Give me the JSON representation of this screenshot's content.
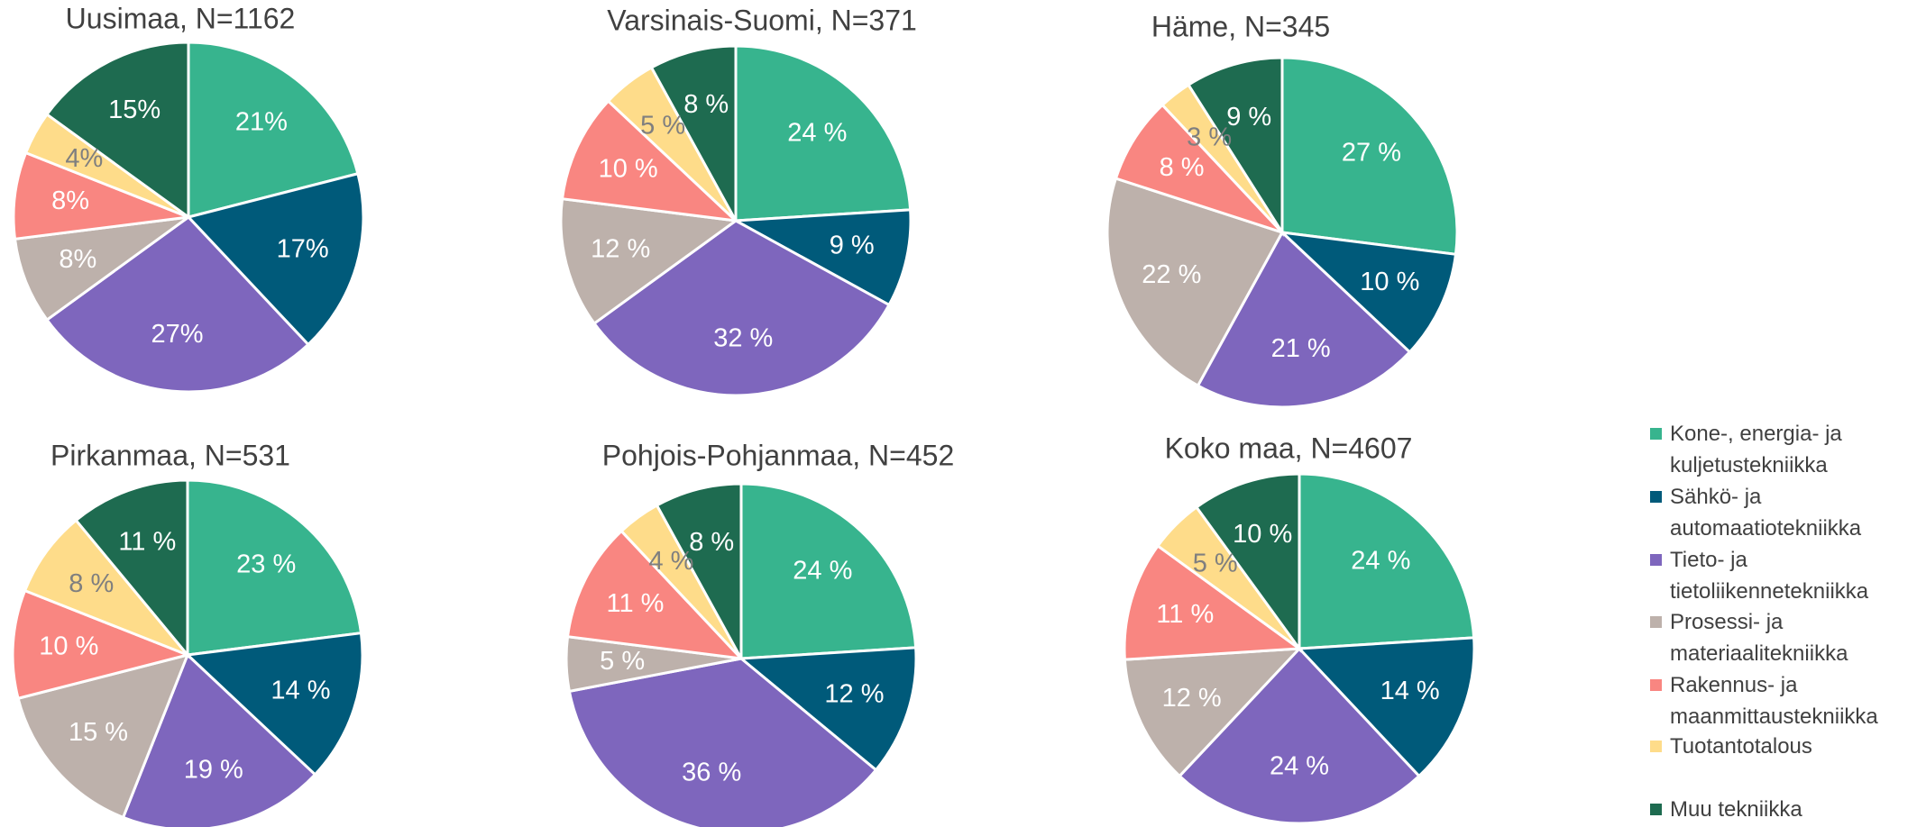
{
  "chart_data": [
    {
      "type": "pie",
      "title": "Uusimaa, N=1162",
      "categories": [
        "Kone-, energia- ja kuljetustekniikka",
        "Sähkö- ja automaatiotekniikka",
        "Tieto- ja tietoliikennetekniikka",
        "Prosessi- ja materiaalitekniikka",
        "Rakennus- ja maanmittaustekniikka",
        "Tuotantotalous",
        "Muu tekniikka"
      ],
      "values": [
        21,
        17,
        27,
        8,
        8,
        4,
        15
      ],
      "value_labels": [
        "21%",
        "17%",
        "27%",
        "8%",
        "8%",
        "4%",
        "15%"
      ],
      "colors": [
        "#37b48e",
        "#005a7a",
        "#7e66bd",
        "#bdb1ab",
        "#f98681",
        "#fedc8a",
        "#1e6b50"
      ]
    },
    {
      "type": "pie",
      "title": "Varsinais-Suomi, N=371",
      "categories": [
        "Kone-, energia- ja kuljetustekniikka",
        "Sähkö- ja automaatiotekniikka",
        "Tieto- ja tietoliikennetekniikka",
        "Prosessi- ja materiaalitekniikka",
        "Rakennus- ja maanmittaustekniikka",
        "Tuotantotalous",
        "Muu tekniikka"
      ],
      "values": [
        24,
        9,
        32,
        12,
        10,
        5,
        8
      ],
      "value_labels": [
        "24 %",
        "9 %",
        "32 %",
        "12 %",
        "10 %",
        "5 %",
        "8 %"
      ],
      "colors": [
        "#37b48e",
        "#005a7a",
        "#7e66bd",
        "#bdb1ab",
        "#f98681",
        "#fedc8a",
        "#1e6b50"
      ]
    },
    {
      "type": "pie",
      "title": "Häme, N=345",
      "categories": [
        "Kone-, energia- ja kuljetustekniikka",
        "Sähkö- ja automaatiotekniikka",
        "Tieto- ja tietoliikennetekniikka",
        "Prosessi- ja materiaalitekniikka",
        "Rakennus- ja maanmittaustekniikka",
        "Tuotantotalous",
        "Muu tekniikka"
      ],
      "values": [
        27,
        10,
        21,
        22,
        8,
        3,
        9
      ],
      "value_labels": [
        "27 %",
        "10 %",
        "21 %",
        "22 %",
        "8 %",
        "3 %",
        "9 %"
      ],
      "colors": [
        "#37b48e",
        "#005a7a",
        "#7e66bd",
        "#bdb1ab",
        "#f98681",
        "#fedc8a",
        "#1e6b50"
      ]
    },
    {
      "type": "pie",
      "title": "Pirkanmaa, N=531",
      "categories": [
        "Kone-, energia- ja kuljetustekniikka",
        "Sähkö- ja automaatiotekniikka",
        "Tieto- ja tietoliikennetekniikka",
        "Prosessi- ja materiaalitekniikka",
        "Rakennus- ja maanmittaustekniikka",
        "Tuotantotalous",
        "Muu tekniikka"
      ],
      "values": [
        23,
        14,
        19,
        15,
        10,
        8,
        11
      ],
      "value_labels": [
        "23 %",
        "14 %",
        "19 %",
        "15 %",
        "10 %",
        "8 %",
        "11 %"
      ],
      "colors": [
        "#37b48e",
        "#005a7a",
        "#7e66bd",
        "#bdb1ab",
        "#f98681",
        "#fedc8a",
        "#1e6b50"
      ]
    },
    {
      "type": "pie",
      "title": "Pohjois-Pohjanmaa, N=452",
      "categories": [
        "Kone-, energia- ja kuljetustekniikka",
        "Sähkö- ja automaatiotekniikka",
        "Tieto- ja tietoliikennetekniikka",
        "Prosessi- ja materiaalitekniikka",
        "Rakennus- ja maanmittaustekniikka",
        "Tuotantotalous",
        "Muu tekniikka"
      ],
      "values": [
        24,
        12,
        36,
        5,
        11,
        4,
        8
      ],
      "value_labels": [
        "24 %",
        "12 %",
        "36 %",
        "5 %",
        "11 %",
        "4 %",
        "8 %"
      ],
      "colors": [
        "#37b48e",
        "#005a7a",
        "#7e66bd",
        "#bdb1ab",
        "#f98681",
        "#fedc8a",
        "#1e6b50"
      ]
    },
    {
      "type": "pie",
      "title": "Koko maa, N=4607",
      "categories": [
        "Kone-, energia- ja kuljetustekniikka",
        "Sähkö- ja automaatiotekniikka",
        "Tieto- ja tietoliikennetekniikka",
        "Prosessi- ja materiaalitekniikka",
        "Rakennus- ja maanmittaustekniikka",
        "Tuotantotalous",
        "Muu tekniikka"
      ],
      "values": [
        24,
        14,
        24,
        12,
        11,
        5,
        10
      ],
      "value_labels": [
        "24 %",
        "14 %",
        "24 %",
        "12 %",
        "11 %",
        "5 %",
        "10 %"
      ],
      "colors": [
        "#37b48e",
        "#005a7a",
        "#7e66bd",
        "#bdb1ab",
        "#f98681",
        "#fedc8a",
        "#1e6b50"
      ]
    }
  ]
}
